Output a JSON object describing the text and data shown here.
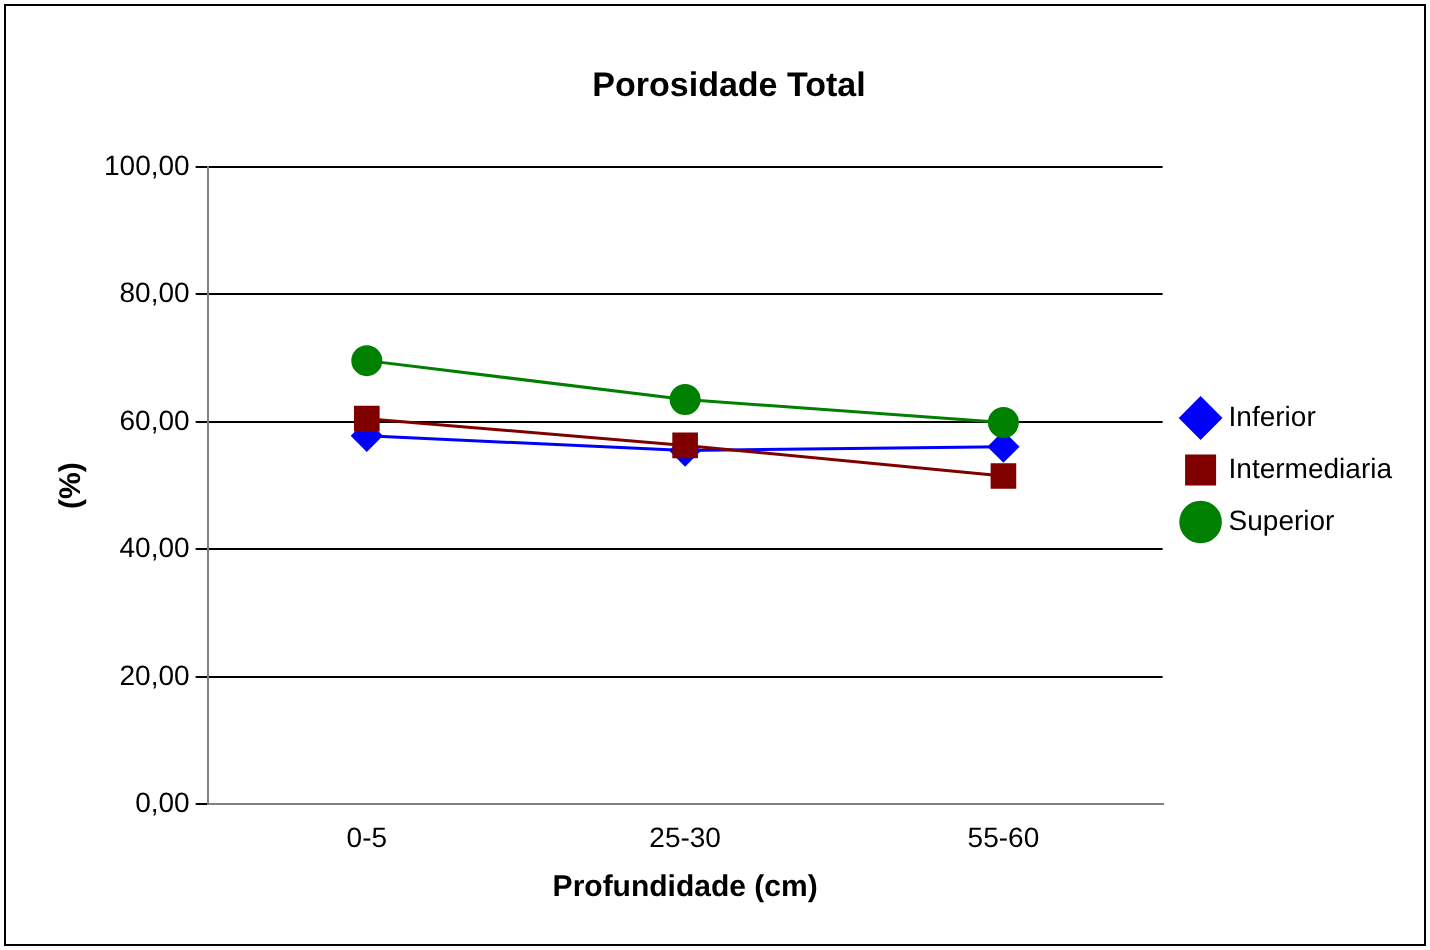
{
  "chart_data": {
    "type": "line",
    "title": "Porosidade Total",
    "xlabel": "Profundidade (cm)",
    "ylabel": "(%)",
    "categories": [
      "0-5",
      "25-30",
      "55-60"
    ],
    "series": [
      {
        "name": "Inferior",
        "color": "#0000ff",
        "marker": "diamond",
        "values": [
          57.8,
          55.5,
          56.1
        ]
      },
      {
        "name": "Intermediaria",
        "color": "#800000",
        "marker": "square",
        "values": [
          60.5,
          56.3,
          51.5
        ]
      },
      {
        "name": "Superior",
        "color": "#008000",
        "marker": "circle",
        "values": [
          69.6,
          63.5,
          59.9
        ]
      }
    ],
    "ylim": [
      0,
      100
    ],
    "yticks": [
      {
        "value": 0,
        "label": "0,00"
      },
      {
        "value": 20,
        "label": "20,00"
      },
      {
        "value": 40,
        "label": "40,00"
      },
      {
        "value": 60,
        "label": "60,00"
      },
      {
        "value": 80,
        "label": "80,00"
      },
      {
        "value": 100,
        "label": "100,00"
      }
    ],
    "grid": "y",
    "legend": "right"
  }
}
